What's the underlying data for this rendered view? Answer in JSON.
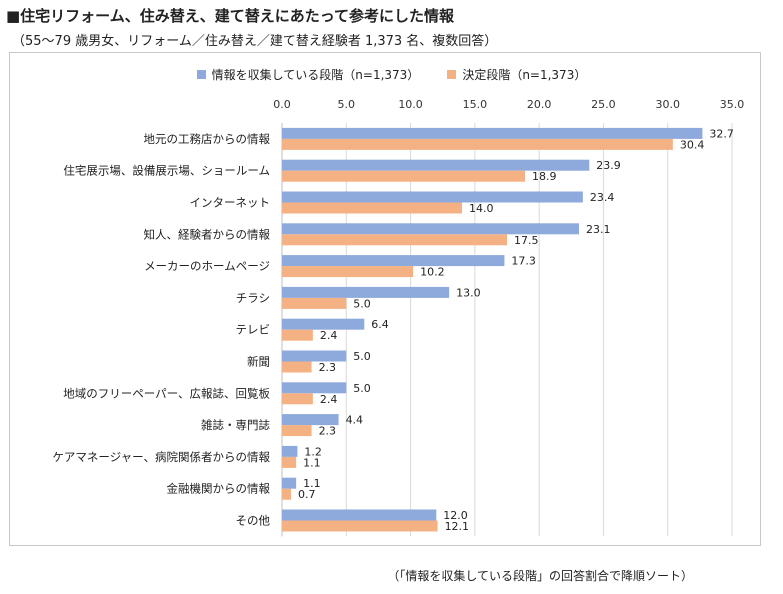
{
  "title": "■住宅リフォーム、住み替え、建て替えにあたって参考にした情報",
  "subtitle": "（55〜79 歳男女、リフォーム／住み替え／建て替え経験者 1,373 名、複数回答）",
  "footnote": "（「情報を収集している段階」の回答割合で降順ソート）",
  "colors": {
    "series1": "#8EA9DB",
    "series2": "#F4B183",
    "grid": "#d9d9d9"
  },
  "chart_data": {
    "type": "bar",
    "orientation": "horizontal",
    "title": "",
    "xlabel": "",
    "ylabel": "",
    "xlim": [
      0,
      35
    ],
    "ticks": [
      "0.0",
      "5.0",
      "10.0",
      "15.0",
      "20.0",
      "25.0",
      "30.0",
      "35.0"
    ],
    "legend_position": "top",
    "grid": true,
    "categories": [
      "地元の工務店からの情報",
      "住宅展示場、設備展示場、ショールーム",
      "インターネット",
      "知人、経験者からの情報",
      "メーカーのホームページ",
      "チラシ",
      "テレビ",
      "新聞",
      "地域のフリーペーパー、広報誌、回覧板",
      "雑誌・専門誌",
      "ケアマネージャー、病院関係者からの情報",
      "金融機関からの情報",
      "その他"
    ],
    "series": [
      {
        "name": "情報を収集している段階（n=1,373）",
        "values": [
          32.7,
          23.9,
          23.4,
          23.1,
          17.3,
          13.0,
          6.4,
          5.0,
          5.0,
          4.4,
          1.2,
          1.1,
          12.0
        ],
        "labels": [
          "32.7",
          "23.9",
          "23.4",
          "23.1",
          "17.3",
          "13.0",
          "6.4",
          "5.0",
          "5.0",
          "4.4",
          "1.2",
          "1.1",
          "12.0"
        ]
      },
      {
        "name": "決定段階（n=1,373）",
        "values": [
          30.4,
          18.9,
          14.0,
          17.5,
          10.2,
          5.0,
          2.4,
          2.3,
          2.4,
          2.3,
          1.1,
          0.7,
          12.1
        ],
        "labels": [
          "30.4",
          "18.9",
          "14.0",
          "17.5",
          "10.2",
          "5.0",
          "2.4",
          "2.3",
          "2.4",
          "2.3",
          "1.1",
          "0.7",
          "12.1"
        ]
      }
    ]
  }
}
